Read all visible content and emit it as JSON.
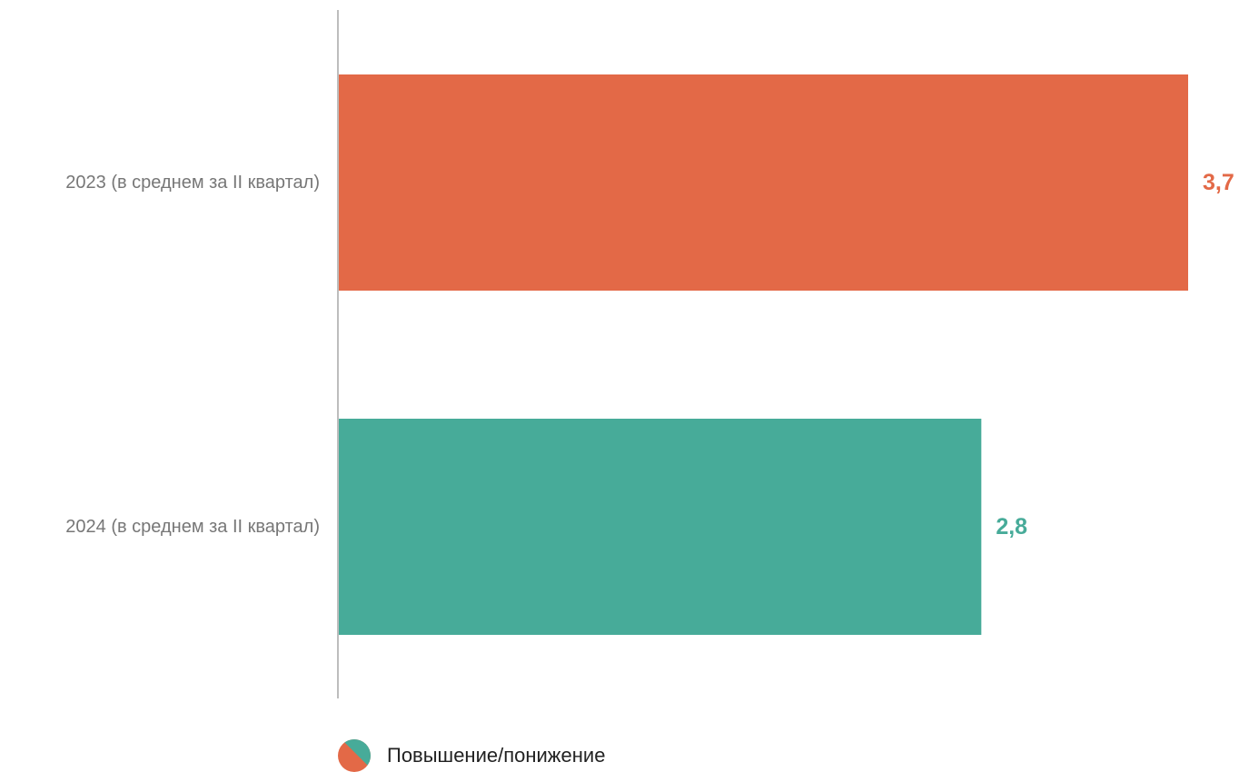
{
  "chart_data": {
    "type": "bar",
    "orientation": "horizontal",
    "categories": [
      "2023 (в среднем за II квартал)",
      "2024 (в среднем за II квартал)"
    ],
    "values": [
      3.7,
      2.8
    ],
    "value_labels": [
      "3,7",
      "2,8"
    ],
    "bar_colors": [
      "#e36947",
      "#47ab99"
    ],
    "title": "",
    "xlabel": "",
    "ylabel": "",
    "xlim": [
      0,
      3.7
    ],
    "grid": false,
    "legend": {
      "placement": "bottom",
      "label": "Повышение/понижение",
      "colors": [
        "#e36947",
        "#47ab99"
      ]
    }
  }
}
